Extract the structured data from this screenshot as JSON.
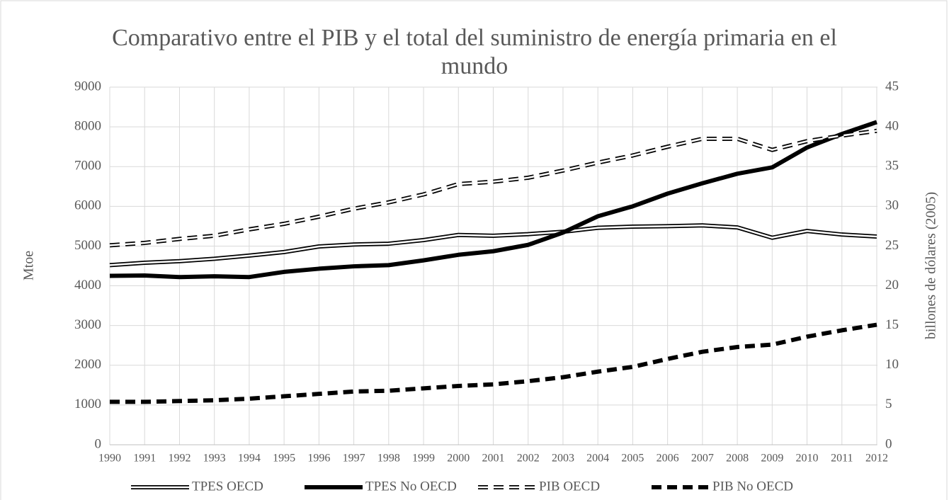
{
  "chart_data": {
    "type": "line",
    "title": "Comparativo entre el PIB y el total del suministro de energía primaria en el mundo",
    "ylabel": "Mtoe",
    "y2label": "billones de dólares (2005)",
    "categories": [
      "1990",
      "1991",
      "1992",
      "1993",
      "1994",
      "1995",
      "1996",
      "1997",
      "1998",
      "1999",
      "2000",
      "2001",
      "2002",
      "2003",
      "2004",
      "2005",
      "2006",
      "2007",
      "2008",
      "2009",
      "2010",
      "2011",
      "2012"
    ],
    "ylim": [
      0,
      9000
    ],
    "yticks": [
      0,
      1000,
      2000,
      3000,
      4000,
      5000,
      6000,
      7000,
      8000,
      9000
    ],
    "y2lim": [
      0,
      45
    ],
    "y2ticks": [
      0,
      5,
      10,
      15,
      20,
      25,
      30,
      35,
      40,
      45
    ],
    "grid": true,
    "legend": "bottom",
    "series": [
      {
        "name": "TPES OECD",
        "color": "#000000",
        "style": "double",
        "values": [
          4520,
          4580,
          4620,
          4680,
          4760,
          4850,
          4990,
          5040,
          5060,
          5150,
          5280,
          5260,
          5300,
          5360,
          5460,
          5490,
          5500,
          5520,
          5470,
          5210,
          5380,
          5290,
          5240
        ]
      },
      {
        "name": "TPES No OECD",
        "color": "#000000",
        "style": "solid",
        "values": [
          4250,
          4260,
          4220,
          4240,
          4220,
          4350,
          4430,
          4490,
          4520,
          4640,
          4780,
          4870,
          5030,
          5340,
          5750,
          6000,
          6320,
          6580,
          6820,
          6980,
          7480,
          7820,
          8120
        ]
      },
      {
        "name": "PIB OECD",
        "color": "#000000",
        "style": "double-dashed",
        "axis": "y2",
        "values": [
          25.1,
          25.4,
          25.9,
          26.3,
          27.1,
          27.8,
          28.7,
          29.7,
          30.5,
          31.5,
          32.8,
          33.1,
          33.6,
          34.5,
          35.5,
          36.4,
          37.5,
          38.5,
          38.5,
          37.1,
          38.2,
          38.9,
          39.5
        ]
      },
      {
        "name": "PIB No OECD",
        "color": "#000000",
        "style": "dashed",
        "axis": "y2",
        "values": [
          5.4,
          5.4,
          5.5,
          5.6,
          5.8,
          6.1,
          6.4,
          6.7,
          6.8,
          7.1,
          7.4,
          7.6,
          8.0,
          8.5,
          9.2,
          9.8,
          10.8,
          11.7,
          12.3,
          12.6,
          13.6,
          14.4,
          15.1
        ]
      }
    ]
  }
}
